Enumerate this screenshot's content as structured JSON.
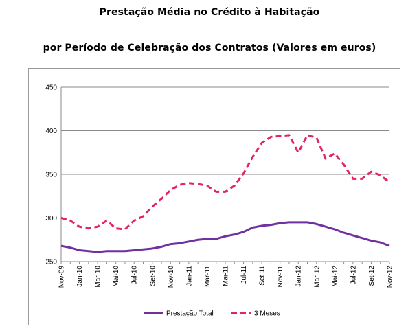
{
  "chart_data": {
    "type": "line",
    "title": "Prestação Média no Crédito à Habitação",
    "subtitle": "por Período de Celebração dos Contratos (Valores em euros)",
    "xlabel": "",
    "ylabel": "",
    "ylim": [
      250,
      450
    ],
    "yticks": [
      250,
      300,
      350,
      400,
      450
    ],
    "grid": true,
    "legend": "bottom",
    "x": [
      "Nov-09",
      "Dez-09",
      "Jan-10",
      "Fev-10",
      "Mar-10",
      "Abr-10",
      "Mai-10",
      "Jun-10",
      "Jul-10",
      "Ago-10",
      "Set-10",
      "Out-10",
      "Nov-10",
      "Dez-10",
      "Jan-11",
      "Fev-11",
      "Mar-11",
      "Abr-11",
      "Mai-11",
      "Jun-11",
      "Jul-11",
      "Ago-11",
      "Set-11",
      "Out-11",
      "Nov-11",
      "Dez-11",
      "Jan-12",
      "Fev-12",
      "Mar-12",
      "Abr-12",
      "Mai-12",
      "Jun-12",
      "Jul-12",
      "Ago-12",
      "Set-12",
      "Out-12",
      "Nov-12"
    ],
    "x_tick_labels": [
      "Nov-09",
      "Jan-10",
      "Mar-10",
      "Mai-10",
      "Jul-10",
      "Set-10",
      "Nov-10",
      "Jan-11",
      "Mar-11",
      "Mai-11",
      "Jul-11",
      "Set-11",
      "Nov-11",
      "Jan-12",
      "Mar-12",
      "Mai-12",
      "Jul-12",
      "Set-12",
      "Nov-12"
    ],
    "series": [
      {
        "name": "Prestação Total",
        "color": "#7030a0",
        "dash": "solid",
        "values": [
          268,
          266,
          263,
          262,
          261,
          262,
          262,
          262,
          263,
          264,
          265,
          267,
          270,
          271,
          273,
          275,
          276,
          276,
          279,
          281,
          284,
          289,
          291,
          292,
          294,
          295,
          295,
          295,
          293,
          290,
          287,
          283,
          280,
          277,
          274,
          272,
          268
        ]
      },
      {
        "name": "3 Meses",
        "color": "#e02466",
        "dash": "dashed",
        "values": [
          300,
          297,
          290,
          288,
          290,
          297,
          288,
          287,
          297,
          302,
          313,
          322,
          332,
          338,
          340,
          339,
          337,
          330,
          330,
          337,
          351,
          370,
          386,
          393,
          394,
          395,
          375,
          395,
          392,
          368,
          374,
          361,
          345,
          345,
          353,
          349,
          341
        ]
      }
    ]
  }
}
